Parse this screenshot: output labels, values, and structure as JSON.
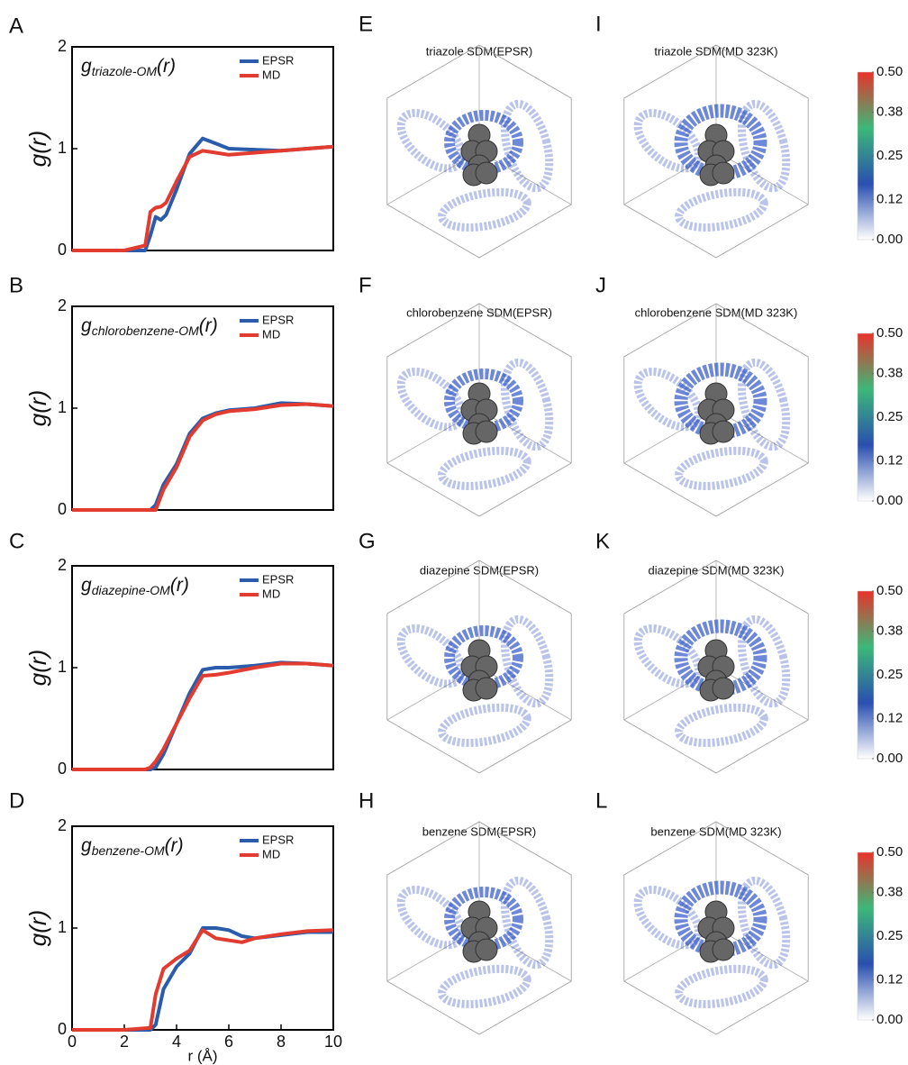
{
  "chart_data": [
    {
      "type": "line",
      "panel": "A",
      "ylabel": "g(r)",
      "annotation": {
        "symbol": "g",
        "subscript": "triazole-OM",
        "argument": "(r)"
      },
      "x": [
        0,
        1,
        2,
        2.8,
        3.0,
        3.2,
        3.4,
        3.6,
        4.0,
        4.5,
        5.0,
        5.5,
        6.0,
        7.0,
        8.0,
        9.0,
        10.0
      ],
      "series": [
        {
          "name": "EPSR",
          "color": "#2b5cab",
          "values": [
            0,
            0,
            0,
            0,
            0.15,
            0.33,
            0.3,
            0.35,
            0.6,
            0.95,
            1.1,
            1.05,
            1.0,
            0.99,
            0.98,
            1.0,
            1.02
          ]
        },
        {
          "name": "MD",
          "color": "#e23b30",
          "values": [
            0,
            0,
            0,
            0.05,
            0.38,
            0.42,
            0.43,
            0.47,
            0.68,
            0.92,
            0.98,
            0.96,
            0.94,
            0.96,
            0.98,
            1.0,
            1.02
          ]
        }
      ],
      "xlim": [
        0,
        10
      ],
      "ylim": [
        0,
        2
      ],
      "yticks": [
        0,
        1,
        2
      ]
    },
    {
      "type": "line",
      "panel": "B",
      "ylabel": "g(r)",
      "annotation": {
        "symbol": "g",
        "subscript": "chlorobenzene-OM",
        "argument": "(r)"
      },
      "x": [
        0,
        1,
        2,
        3.0,
        3.2,
        3.5,
        4.0,
        4.5,
        5.0,
        5.5,
        6,
        7,
        8,
        9,
        10
      ],
      "series": [
        {
          "name": "EPSR",
          "color": "#2b5cab",
          "values": [
            0,
            0,
            0,
            0,
            0.05,
            0.25,
            0.45,
            0.75,
            0.9,
            0.95,
            0.98,
            1.0,
            1.05,
            1.04,
            1.02
          ]
        },
        {
          "name": "MD",
          "color": "#e23b30",
          "values": [
            0,
            0,
            0,
            0,
            0,
            0.2,
            0.42,
            0.72,
            0.88,
            0.94,
            0.97,
            0.99,
            1.03,
            1.04,
            1.02
          ]
        }
      ],
      "xlim": [
        0,
        10
      ],
      "ylim": [
        0,
        2
      ],
      "yticks": [
        0,
        1,
        2
      ]
    },
    {
      "type": "line",
      "panel": "C",
      "ylabel": "g(r)",
      "annotation": {
        "symbol": "g",
        "subscript": "diazepine-OM",
        "argument": "(r)"
      },
      "x": [
        0,
        1,
        2,
        2.8,
        3.0,
        3.2,
        3.5,
        4.0,
        4.5,
        5.0,
        5.5,
        6,
        7,
        8,
        9,
        10
      ],
      "series": [
        {
          "name": "EPSR",
          "color": "#2b5cab",
          "values": [
            0,
            0,
            0,
            0,
            0,
            0.02,
            0.15,
            0.45,
            0.75,
            0.98,
            1.0,
            1.0,
            1.02,
            1.05,
            1.04,
            1.02
          ]
        },
        {
          "name": "MD",
          "color": "#e23b30",
          "values": [
            0,
            0,
            0,
            0,
            0.02,
            0.08,
            0.2,
            0.45,
            0.7,
            0.92,
            0.93,
            0.95,
            1.0,
            1.04,
            1.04,
            1.02
          ]
        }
      ],
      "xlim": [
        0,
        10
      ],
      "ylim": [
        0,
        2
      ],
      "yticks": [
        0,
        1,
        2
      ]
    },
    {
      "type": "line",
      "panel": "D",
      "ylabel": "g(r)",
      "xlabel": "r (Å)",
      "annotation": {
        "symbol": "g",
        "subscript": "benzene-OM",
        "argument": "(r)"
      },
      "x": [
        0,
        1,
        2,
        3.0,
        3.2,
        3.5,
        4.0,
        4.5,
        5.0,
        5.5,
        6,
        6.5,
        7,
        8,
        9,
        10
      ],
      "series": [
        {
          "name": "EPSR",
          "color": "#2b5cab",
          "values": [
            0,
            0,
            0,
            0,
            0.05,
            0.4,
            0.62,
            0.75,
            1.0,
            1.0,
            0.98,
            0.92,
            0.9,
            0.93,
            0.96,
            0.96
          ]
        },
        {
          "name": "MD",
          "color": "#e23b30",
          "values": [
            0,
            0,
            0,
            0.02,
            0.35,
            0.6,
            0.7,
            0.78,
            0.98,
            0.9,
            0.88,
            0.86,
            0.9,
            0.94,
            0.97,
            0.98
          ]
        }
      ],
      "xlim": [
        0,
        10
      ],
      "ylim": [
        0,
        2
      ],
      "yticks": [
        0,
        1,
        2
      ],
      "xticks": [
        0,
        2,
        4,
        6,
        8,
        10
      ]
    }
  ],
  "sdm_rows": [
    {
      "panels": [
        {
          "letter": "E",
          "title": "triazole SDM(EPSR)"
        },
        {
          "letter": "I",
          "title": "triazole SDM(MD 323K)"
        }
      ],
      "colorbar": {
        "lim": [
          0,
          0.5
        ],
        "ticks": [
          {
            "value": 0,
            "label": "0.00"
          },
          0.12,
          0.25,
          0.38,
          {
            "value": 0.5,
            "label": "0.50"
          }
        ]
      }
    },
    {
      "panels": [
        {
          "letter": "F",
          "title": "chlorobenzene SDM(EPSR)"
        },
        {
          "letter": "J",
          "title": "chlorobenzene SDM(MD 323K)"
        }
      ],
      "colorbar": {
        "lim": [
          0,
          0.5
        ],
        "ticks": [
          {
            "value": 0,
            "label": "0.00"
          },
          0.12,
          0.25,
          0.38,
          {
            "value": 0.5,
            "label": "0.50"
          }
        ]
      }
    },
    {
      "panels": [
        {
          "letter": "G",
          "title": "diazepine SDM(EPSR)"
        },
        {
          "letter": "K",
          "title": "diazepine SDM(MD 323K)"
        }
      ],
      "colorbar": {
        "lim": [
          0,
          0.5
        ],
        "ticks": [
          {
            "value": 0,
            "label": "0.00"
          },
          0.12,
          0.25,
          0.38,
          {
            "value": 0.5,
            "label": "0.50"
          }
        ]
      }
    },
    {
      "panels": [
        {
          "letter": "H",
          "title": "benzene SDM(EPSR)"
        },
        {
          "letter": "L",
          "title": "benzene SDM(MD 323K)"
        }
      ],
      "colorbar": {
        "lim": [
          0,
          0.5
        ],
        "ticks": [
          {
            "value": 0,
            "label": "0.00"
          },
          0.12,
          0.25,
          0.38,
          {
            "value": 0.5,
            "label": "0.50"
          }
        ]
      }
    }
  ],
  "colormap": [
    "#ffffff",
    "#2a4fb0",
    "#3cb878",
    "#e8332a"
  ]
}
